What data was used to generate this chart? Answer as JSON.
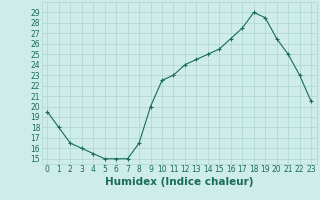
{
  "x": [
    0,
    1,
    2,
    3,
    4,
    5,
    6,
    7,
    8,
    9,
    10,
    11,
    12,
    13,
    14,
    15,
    16,
    17,
    18,
    19,
    20,
    21,
    22,
    23
  ],
  "y": [
    19.5,
    18.0,
    16.5,
    16.0,
    15.5,
    15.0,
    15.0,
    15.0,
    16.5,
    20.0,
    22.5,
    23.0,
    24.0,
    24.5,
    25.0,
    25.5,
    26.5,
    27.5,
    29.0,
    28.5,
    26.5,
    25.0,
    23.0,
    20.5
  ],
  "line_color": "#1a6b5a",
  "marker": "+",
  "marker_size": 3.5,
  "marker_linewidth": 0.8,
  "bg_color": "#ceecea",
  "grid_color": "#aed4d0",
  "xlabel": "Humidex (Indice chaleur)",
  "xlim": [
    -0.5,
    23.5
  ],
  "ylim": [
    14.5,
    30.0
  ],
  "yticks": [
    15,
    16,
    17,
    18,
    19,
    20,
    21,
    22,
    23,
    24,
    25,
    26,
    27,
    28,
    29
  ],
  "xticks": [
    0,
    1,
    2,
    3,
    4,
    5,
    6,
    7,
    8,
    9,
    10,
    11,
    12,
    13,
    14,
    15,
    16,
    17,
    18,
    19,
    20,
    21,
    22,
    23
  ],
  "tick_fontsize": 5.5,
  "xlabel_fontsize": 7.5,
  "label_color": "#1a6b5a",
  "linewidth": 0.8
}
